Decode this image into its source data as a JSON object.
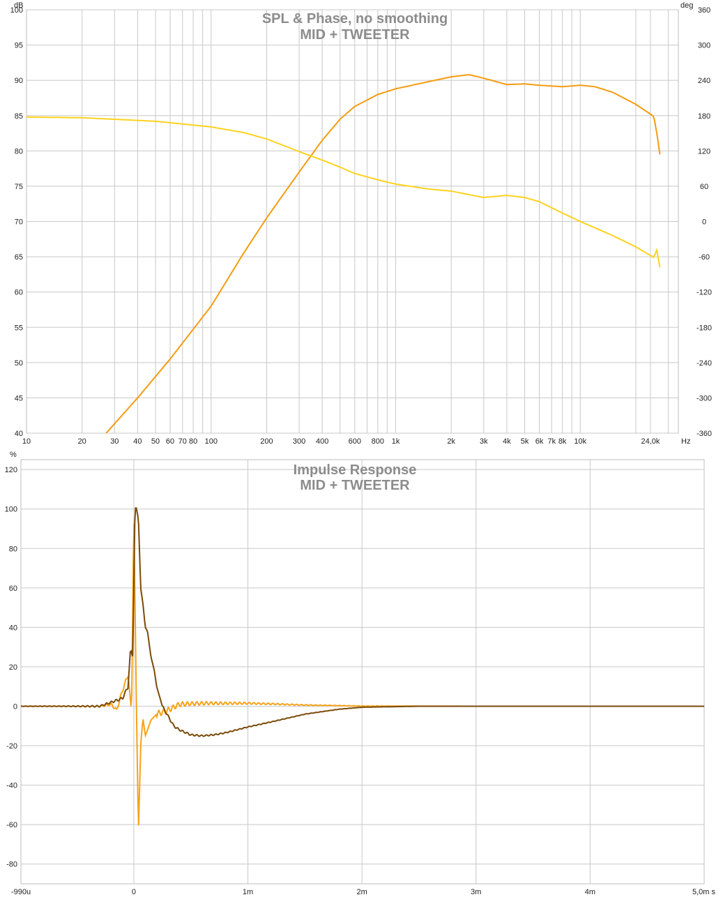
{
  "colors": {
    "spl": "#f59b10",
    "phase": "#ffd21e",
    "impulse_dark": "#7a4a08",
    "impulse_light": "#f7a21a",
    "grid": "#c8c8c8",
    "frame": "#bdbdbd",
    "title": "#8c8c8c"
  },
  "top": {
    "title_line1": "SPL & Phase, no smoothing",
    "title_line2": "MID + TWEETER",
    "left_unit": "dB",
    "right_unit": "deg",
    "x_unit": "Hz"
  },
  "bottom": {
    "title_line1": "Impulse Response",
    "title_line2": "MID + TWEETER",
    "y_unit": "%",
    "x_unit": "s"
  },
  "chart_data": [
    {
      "type": "line",
      "title": "SPL & Phase, no smoothing",
      "subtitle": "MID + TWEETER",
      "x_scale": "log",
      "xlim": [
        10,
        34000
      ],
      "ylim": [
        40,
        100
      ],
      "y2lim": [
        -360,
        360
      ],
      "ylabel": "dB",
      "y2label": "deg",
      "xlabel": "Hz",
      "grid": true,
      "x_ticks": [
        {
          "v": 10,
          "label": "10"
        },
        {
          "v": 20,
          "label": "20"
        },
        {
          "v": 30,
          "label": "30"
        },
        {
          "v": 40,
          "label": "40"
        },
        {
          "v": 50,
          "label": "50"
        },
        {
          "v": 60,
          "label": "60"
        },
        {
          "v": 70,
          "label": "70"
        },
        {
          "v": 80,
          "label": "80"
        },
        {
          "v": 100,
          "label": "100"
        },
        {
          "v": 200,
          "label": "200"
        },
        {
          "v": 300,
          "label": "300"
        },
        {
          "v": 400,
          "label": "400"
        },
        {
          "v": 600,
          "label": "600"
        },
        {
          "v": 800,
          "label": "800"
        },
        {
          "v": 1000,
          "label": "1k"
        },
        {
          "v": 2000,
          "label": "2k"
        },
        {
          "v": 3000,
          "label": "3k"
        },
        {
          "v": 4000,
          "label": "4k"
        },
        {
          "v": 5000,
          "label": "5k"
        },
        {
          "v": 6000,
          "label": "6k"
        },
        {
          "v": 7000,
          "label": "7k"
        },
        {
          "v": 8000,
          "label": "8k"
        },
        {
          "v": 10000,
          "label": "10k"
        },
        {
          "v": 24000,
          "label": "24,0k"
        }
      ],
      "y_ticks": [
        100,
        95,
        90,
        85,
        80,
        75,
        70,
        65,
        60,
        55,
        50,
        45,
        40
      ],
      "y2_ticks": [
        360,
        300,
        240,
        180,
        120,
        60,
        0,
        -60,
        -120,
        -180,
        -240,
        -300,
        -360
      ],
      "series": [
        {
          "axis": "left",
          "color_key": "spl",
          "x": [
            27,
            40,
            60,
            100,
            150,
            200,
            300,
            400,
            500,
            600,
            800,
            1000,
            1500,
            2000,
            2500,
            3000,
            4000,
            5000,
            6000,
            8000,
            10000,
            12000,
            15000,
            20000,
            25000,
            26000,
            27000
          ],
          "y": [
            40,
            45,
            50.5,
            58,
            65.5,
            70.5,
            77,
            81.5,
            84.5,
            86.3,
            88,
            88.8,
            89.8,
            90.5,
            90.8,
            90.3,
            89.4,
            89.5,
            89.3,
            89.1,
            89.3,
            89.1,
            88.3,
            86.6,
            84.9,
            82.5,
            79.5
          ]
        },
        {
          "axis": "left",
          "color_key": "phase",
          "x": [
            10,
            20,
            50,
            100,
            150,
            200,
            300,
            400,
            500,
            600,
            800,
            1000,
            1500,
            2000,
            2500,
            3000,
            4000,
            5000,
            6000,
            8000,
            10000,
            15000,
            20000,
            25000,
            26000,
            27000
          ],
          "y": [
            84.8,
            84.7,
            84.2,
            83.4,
            82.6,
            81.7,
            79.9,
            78.7,
            77.7,
            76.8,
            75.9,
            75.3,
            74.6,
            74.3,
            73.8,
            73.4,
            73.7,
            73.4,
            72.8,
            71.2,
            70,
            68,
            66.4,
            64.9,
            66,
            63.5
          ]
        }
      ]
    },
    {
      "type": "line",
      "title": "Impulse Response",
      "subtitle": "MID + TWEETER",
      "xlim": [
        -0.00099,
        0.005
      ],
      "ylim": [
        -90,
        125
      ],
      "ylabel": "%",
      "xlabel": "s",
      "grid": true,
      "x_ticks": [
        {
          "v": -0.00099,
          "label": "-990u"
        },
        {
          "v": 0,
          "label": "0"
        },
        {
          "v": 0.001,
          "label": "1m"
        },
        {
          "v": 0.002,
          "label": "2m"
        },
        {
          "v": 0.003,
          "label": "3m"
        },
        {
          "v": 0.004,
          "label": "4m"
        },
        {
          "v": 0.005,
          "label": "5,0m s"
        }
      ],
      "y_ticks": [
        120,
        100,
        80,
        60,
        40,
        20,
        0,
        -20,
        -40,
        -60,
        -80
      ],
      "series": [
        {
          "color_key": "impulse_light",
          "x": [
            -0.00099,
            -0.0003,
            -0.0002,
            -0.00015,
            -0.0001,
            -5e-05,
            -2e-05,
            0,
            2e-05,
            4e-05,
            6e-05,
            8e-05,
            0.0001,
            0.00012,
            0.00015,
            0.0002,
            0.00025,
            0.0003,
            0.0004,
            0.0006,
            0.0008,
            0.001,
            0.0012,
            0.0015,
            0.002,
            0.003,
            0.004,
            0.005
          ],
          "y": [
            0,
            0,
            1,
            -2,
            8,
            16,
            -3,
            100,
            10,
            -64,
            -20,
            -6,
            -15,
            -12,
            -7,
            -4,
            -3,
            -2,
            1,
            1.5,
            1.5,
            1.5,
            1.2,
            0.6,
            0.1,
            0,
            0,
            0
          ]
        },
        {
          "color_key": "impulse_dark",
          "x": [
            -0.00099,
            -0.0003,
            -0.0001,
            -5e-05,
            -3e-05,
            -1e-05,
            0,
            1e-05,
            2e-05,
            4e-05,
            6e-05,
            8e-05,
            0.0001,
            0.00012,
            0.00015,
            0.00018,
            0.0002,
            0.00025,
            0.0003,
            0.00035,
            0.0004,
            0.0005,
            0.0006,
            0.0007,
            0.0008,
            0.001,
            0.0012,
            0.0015,
            0.0018,
            0.002,
            0.0025,
            0.003,
            0.004,
            0.005
          ],
          "y": [
            0,
            0,
            4,
            10,
            29,
            25,
            60,
            100,
            101,
            95,
            60,
            52,
            40,
            38,
            25,
            18,
            10,
            0,
            -5,
            -10,
            -12,
            -14.5,
            -15,
            -14.5,
            -13.5,
            -10.5,
            -8,
            -4,
            -1.5,
            -0.5,
            0,
            0,
            0,
            0
          ]
        }
      ]
    }
  ]
}
